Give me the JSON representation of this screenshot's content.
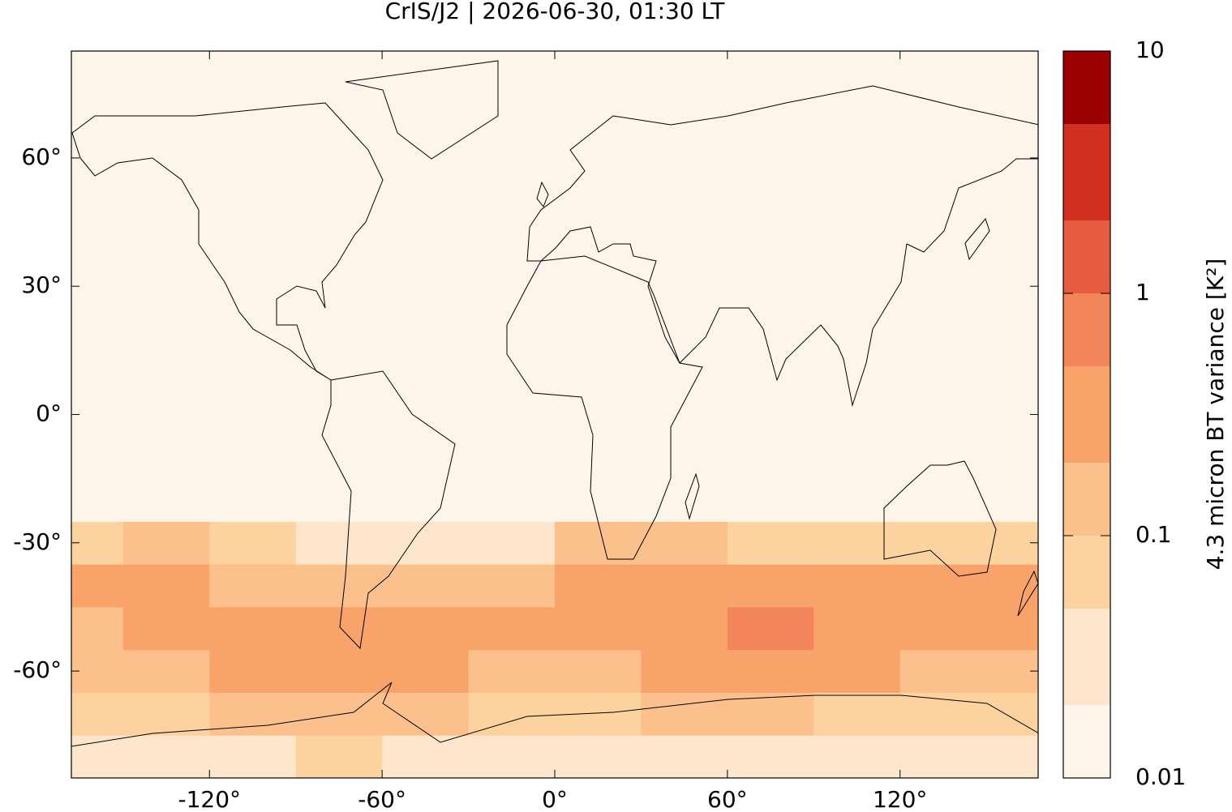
{
  "chart_data": {
    "type": "map",
    "title": "CrIS/J2 | 2026-06-30, 01:30 LT",
    "xlim": [
      -168,
      168
    ],
    "ylim": [
      -85,
      85
    ],
    "xticks": [
      {
        "value": -120,
        "label": "-120°"
      },
      {
        "value": -60,
        "label": "-60°"
      },
      {
        "value": 0,
        "label": "0°"
      },
      {
        "value": 60,
        "label": "60°"
      },
      {
        "value": 120,
        "label": "120°"
      }
    ],
    "yticks": [
      {
        "value": -60,
        "label": "-60°"
      },
      {
        "value": -30,
        "label": "-30°"
      },
      {
        "value": 0,
        "label": "0°"
      },
      {
        "value": 30,
        "label": "30°"
      },
      {
        "value": 60,
        "label": "60°"
      }
    ],
    "field": {
      "lon_edges": [
        -180,
        -150,
        -120,
        -90,
        -60,
        -30,
        0,
        30,
        60,
        90,
        120,
        150,
        180
      ],
      "lat_edges": [
        -90,
        -75,
        -65,
        -55,
        -45,
        -35,
        -25,
        90
      ],
      "values": [
        [
          0.03,
          0.04,
          0.04,
          0.05,
          0.04,
          0.03,
          0.03,
          0.03,
          0.03,
          0.03,
          0.03,
          0.03
        ],
        [
          0.06,
          0.08,
          0.1,
          0.15,
          0.15,
          0.08,
          0.08,
          0.1,
          0.1,
          0.08,
          0.06,
          0.06
        ],
        [
          0.1,
          0.15,
          0.25,
          0.3,
          0.2,
          0.1,
          0.15,
          0.2,
          0.3,
          0.2,
          0.15,
          0.15
        ],
        [
          0.15,
          0.2,
          0.3,
          0.4,
          0.3,
          0.2,
          0.4,
          0.4,
          0.6,
          0.3,
          0.3,
          0.3
        ],
        [
          0.2,
          0.3,
          0.15,
          0.1,
          0.15,
          0.1,
          0.4,
          0.4,
          0.3,
          0.25,
          0.3,
          0.25
        ],
        [
          0.08,
          0.1,
          0.06,
          0.03,
          0.03,
          0.03,
          0.1,
          0.1,
          0.08,
          0.06,
          0.06,
          0.05
        ],
        [
          0.015,
          0.015,
          0.015,
          0.015,
          0.015,
          0.015,
          0.015,
          0.015,
          0.015,
          0.015,
          0.015,
          0.015
        ]
      ]
    },
    "colorbar": {
      "label": "4.3 micron BT variance [K²]",
      "log_scale": true,
      "lim": [
        0.01,
        10
      ],
      "ticks": [
        0.01,
        0.1,
        1,
        10
      ],
      "levels": [
        0.01,
        0.02,
        0.05,
        0.1,
        0.2,
        0.5,
        1,
        2,
        5,
        10
      ],
      "colors": [
        "#fef5ea",
        "#fde6cc",
        "#fcd39e",
        "#fbc08c",
        "#f9a36b",
        "#f3855b",
        "#e65a3f",
        "#d13020",
        "#9a0000"
      ]
    }
  }
}
